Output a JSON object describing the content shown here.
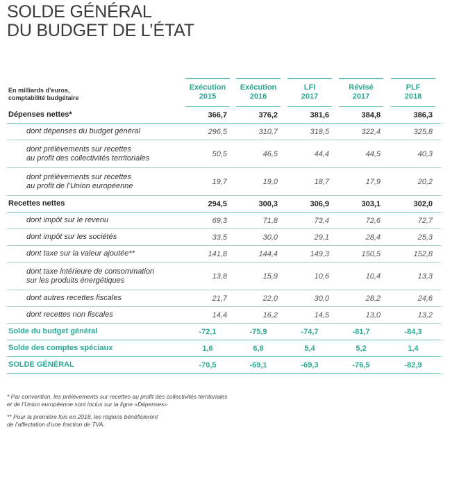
{
  "title": [
    "SOLDE GÉNÉRAL",
    "DU BUDGET DE L’ÉTAT"
  ],
  "unit": [
    "En milliards d’euros,",
    "comptabilité budgétaire"
  ],
  "columns": [
    [
      "Exécution",
      "2015"
    ],
    [
      "Exécution",
      "2016"
    ],
    [
      "LFI",
      "2017"
    ],
    [
      "Révisé",
      "2017"
    ],
    [
      "PLF",
      "2018"
    ]
  ],
  "rows": [
    {
      "type": "main",
      "label": [
        "Dépenses nettes*"
      ],
      "values": [
        "366,7",
        "376,2",
        "381,6",
        "384,8",
        "386,3"
      ]
    },
    {
      "type": "sub",
      "label": [
        "dont dépenses du budget général"
      ],
      "values": [
        "296,5",
        "310,7",
        "318,5",
        "322,4",
        "325,8"
      ]
    },
    {
      "type": "sub",
      "label": [
        "dont prélèvements sur recettes",
        "au profit des collectivités territoriales"
      ],
      "values": [
        "50,5",
        "46,5",
        "44,4",
        "44,5",
        "40,3"
      ]
    },
    {
      "type": "sub",
      "label": [
        "dont prélèvements sur recettes",
        "au profit de l’Union européenne"
      ],
      "values": [
        "19,7",
        "19,0",
        "18,7",
        "17,9",
        "20,2"
      ]
    },
    {
      "type": "main",
      "label": [
        "Recettes nettes"
      ],
      "values": [
        "294,5",
        "300,3",
        "306,9",
        "303,1",
        "302,0"
      ]
    },
    {
      "type": "sub",
      "label": [
        "dont impôt sur le revenu"
      ],
      "values": [
        "69,3",
        "71,8",
        "73,4",
        "72,6",
        "72,7"
      ]
    },
    {
      "type": "sub",
      "label": [
        "dont impôt sur les sociétés"
      ],
      "values": [
        "33,5",
        "30,0",
        "29,1",
        "28,4",
        "25,3"
      ]
    },
    {
      "type": "sub",
      "label": [
        "dont taxe sur la valeur ajoutée**"
      ],
      "values": [
        "141,8",
        "144,4",
        "149,3",
        "150,5",
        "152,8"
      ]
    },
    {
      "type": "sub",
      "label": [
        "dont taxe intérieure de consommation",
        "sur les produits énergétiques"
      ],
      "values": [
        "13,8",
        "15,9",
        "10,6",
        "10,4",
        "13,3"
      ]
    },
    {
      "type": "sub",
      "label": [
        "dont autres recettes fiscales"
      ],
      "values": [
        "21,7",
        "22,0",
        "30,0",
        "28,2",
        "24,6"
      ]
    },
    {
      "type": "sub",
      "label": [
        "dont recettes non fiscales"
      ],
      "values": [
        "14,4",
        "16,2",
        "14,5",
        "13,0",
        "13,2"
      ]
    },
    {
      "type": "teal",
      "label": [
        "Solde du budget général"
      ],
      "values": [
        "-72,1",
        "-75,9",
        "-74,7",
        "-81,7",
        "-84,3"
      ]
    },
    {
      "type": "teal",
      "label": [
        "Solde des comptes spéciaux"
      ],
      "values": [
        "1,6",
        "6,8",
        "5,4",
        "5,2",
        "1,4"
      ]
    },
    {
      "type": "teal",
      "label": [
        "SOLDE GÉNÉRAL"
      ],
      "values": [
        "-70,5",
        "-69,1",
        "-69,3",
        "-76,5",
        "-82,9"
      ]
    }
  ],
  "notes": [
    [
      "* Par convention, les prélèvements sur recettes au profit des collectivités territoriales",
      "et de l’Union européenne sont inclus sur la ligne «Dépenses»"
    ],
    [
      "** Pour la première fois en 2018, les régions bénéficieront",
      "de l’affectation d’une fraction de TVA."
    ]
  ]
}
